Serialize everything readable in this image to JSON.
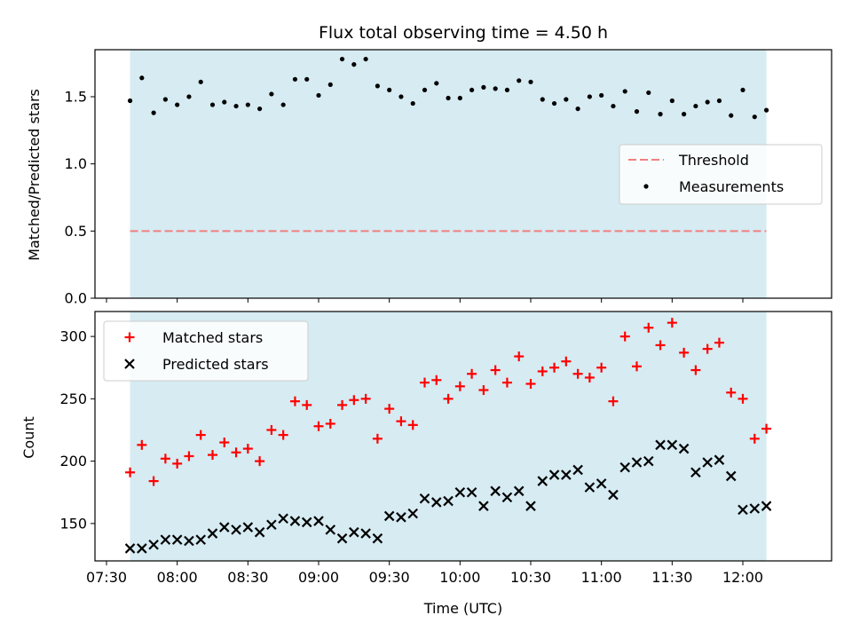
{
  "title": "Flux total observing time = 4.50 h",
  "xlabel": "Time (UTC)",
  "colors": {
    "shade": "#add8e6",
    "threshold": "#f08080",
    "measurement": "#000000",
    "matched": "#ff0000",
    "predicted": "#000000"
  },
  "chart_data": [
    {
      "type": "scatter",
      "ylabel": "Matched/Predicted stars",
      "ylim": [
        0,
        1.85
      ],
      "yticks": [
        "0.0",
        "0.5",
        "1.0",
        "1.5"
      ],
      "threshold": 0.5,
      "shaded_x_range": [
        "07:40",
        "12:10"
      ],
      "legend": {
        "placement": "center-right",
        "entries": [
          "Threshold",
          "Measurements"
        ]
      },
      "series": [
        {
          "name": "Measurements",
          "x": [
            "07:40",
            "07:45",
            "07:50",
            "07:55",
            "08:00",
            "08:05",
            "08:10",
            "08:15",
            "08:20",
            "08:25",
            "08:30",
            "08:35",
            "08:40",
            "08:45",
            "08:50",
            "08:55",
            "09:00",
            "09:05",
            "09:10",
            "09:15",
            "09:20",
            "09:25",
            "09:30",
            "09:35",
            "09:40",
            "09:45",
            "09:50",
            "09:55",
            "10:00",
            "10:05",
            "10:10",
            "10:15",
            "10:20",
            "10:25",
            "10:30",
            "10:35",
            "10:40",
            "10:45",
            "10:50",
            "10:55",
            "11:00",
            "11:05",
            "11:10",
            "11:15",
            "11:20",
            "11:25",
            "11:30",
            "11:35",
            "11:40",
            "11:45",
            "11:50",
            "11:55",
            "12:00",
            "12:05",
            "12:10"
          ],
          "values": [
            1.47,
            1.64,
            1.38,
            1.48,
            1.44,
            1.5,
            1.61,
            1.44,
            1.46,
            1.43,
            1.44,
            1.41,
            1.52,
            1.44,
            1.63,
            1.63,
            1.51,
            1.59,
            1.78,
            1.74,
            1.78,
            1.58,
            1.55,
            1.5,
            1.45,
            1.55,
            1.6,
            1.49,
            1.49,
            1.55,
            1.57,
            1.56,
            1.55,
            1.62,
            1.61,
            1.48,
            1.45,
            1.48,
            1.41,
            1.5,
            1.51,
            1.43,
            1.54,
            1.39,
            1.53,
            1.37,
            1.47,
            1.37,
            1.43,
            1.46,
            1.47,
            1.36,
            1.55,
            1.35,
            1.4
          ]
        }
      ]
    },
    {
      "type": "scatter",
      "ylabel": "Count",
      "ylim": [
        120,
        320
      ],
      "yticks": [
        "150",
        "200",
        "250",
        "300"
      ],
      "xticks": [
        "07:30",
        "08:00",
        "08:30",
        "09:00",
        "09:30",
        "10:00",
        "10:30",
        "11:00",
        "11:30",
        "12:00"
      ],
      "shaded_x_range": [
        "07:40",
        "12:10"
      ],
      "legend": {
        "placement": "upper-left",
        "entries": [
          "Matched stars",
          "Predicted stars"
        ]
      },
      "series": [
        {
          "name": "Matched stars",
          "x": [
            "07:40",
            "07:45",
            "07:50",
            "07:55",
            "08:00",
            "08:05",
            "08:10",
            "08:15",
            "08:20",
            "08:25",
            "08:30",
            "08:35",
            "08:40",
            "08:45",
            "08:50",
            "08:55",
            "09:00",
            "09:05",
            "09:10",
            "09:15",
            "09:20",
            "09:25",
            "09:30",
            "09:35",
            "09:40",
            "09:45",
            "09:50",
            "09:55",
            "10:00",
            "10:05",
            "10:10",
            "10:15",
            "10:20",
            "10:25",
            "10:30",
            "10:35",
            "10:40",
            "10:45",
            "10:50",
            "10:55",
            "11:00",
            "11:05",
            "11:10",
            "11:15",
            "11:20",
            "11:25",
            "11:30",
            "11:35",
            "11:40",
            "11:45",
            "11:50",
            "11:55",
            "12:00",
            "12:05",
            "12:10"
          ],
          "values": [
            191,
            213,
            184,
            202,
            198,
            204,
            221,
            205,
            215,
            207,
            210,
            200,
            225,
            221,
            248,
            245,
            228,
            230,
            245,
            249,
            250,
            218,
            242,
            232,
            229,
            263,
            265,
            250,
            260,
            270,
            257,
            273,
            263,
            284,
            262,
            272,
            275,
            280,
            270,
            267,
            275,
            248,
            300,
            276,
            307,
            293,
            311,
            287,
            273,
            290,
            295,
            255,
            250,
            218,
            226
          ]
        },
        {
          "name": "Predicted stars",
          "x": [
            "07:40",
            "07:45",
            "07:50",
            "07:55",
            "08:00",
            "08:05",
            "08:10",
            "08:15",
            "08:20",
            "08:25",
            "08:30",
            "08:35",
            "08:40",
            "08:45",
            "08:50",
            "08:55",
            "09:00",
            "09:05",
            "09:10",
            "09:15",
            "09:20",
            "09:25",
            "09:30",
            "09:35",
            "09:40",
            "09:45",
            "09:50",
            "09:55",
            "10:00",
            "10:05",
            "10:10",
            "10:15",
            "10:20",
            "10:25",
            "10:30",
            "10:35",
            "10:40",
            "10:45",
            "10:50",
            "10:55",
            "11:00",
            "11:05",
            "11:10",
            "11:15",
            "11:20",
            "11:25",
            "11:30",
            "11:35",
            "11:40",
            "11:45",
            "11:50",
            "11:55",
            "12:00",
            "12:05",
            "12:10"
          ],
          "values": [
            130,
            130,
            133,
            137,
            137,
            136,
            137,
            142,
            147,
            145,
            147,
            143,
            149,
            154,
            152,
            151,
            152,
            145,
            138,
            143,
            142,
            138,
            156,
            155,
            158,
            170,
            167,
            168,
            175,
            175,
            164,
            176,
            171,
            176,
            164,
            184,
            189,
            189,
            193,
            179,
            182,
            173,
            195,
            199,
            200,
            213,
            213,
            210,
            191,
            199,
            201,
            188,
            161,
            162,
            164
          ]
        }
      ]
    }
  ]
}
